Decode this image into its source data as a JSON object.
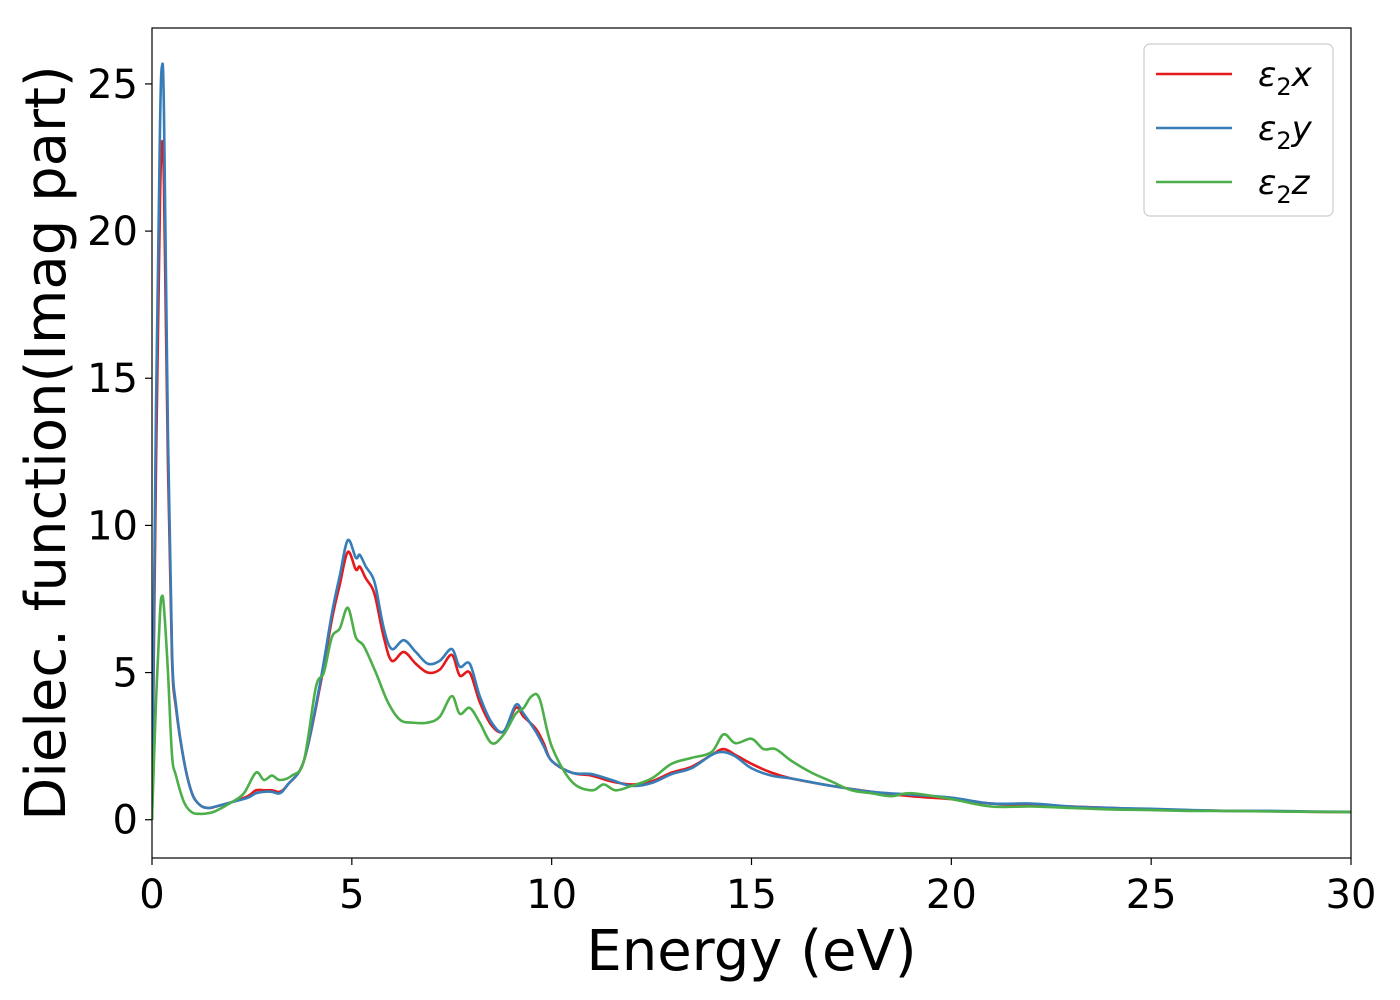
{
  "chart_data": {
    "type": "line",
    "xlabel": "Energy (eV)",
    "ylabel": "Dielec. function(Imag part)",
    "xlim": [
      0,
      30
    ],
    "ylim": [
      -1.3,
      26.9
    ],
    "xticks": [
      0,
      5,
      10,
      15,
      20,
      25,
      30
    ],
    "yticks": [
      0,
      5,
      10,
      15,
      20,
      25
    ],
    "legend_position": "top-right",
    "grid": false,
    "series": [
      {
        "name": "ε₂x",
        "legend_base": "ε",
        "legend_sub": "2",
        "legend_var": "x",
        "color": "#e41a1c",
        "x": [
          0,
          0.1,
          0.2,
          0.25,
          0.3,
          0.4,
          0.5,
          0.6,
          0.8,
          1.0,
          1.2,
          1.4,
          1.6,
          2.0,
          2.4,
          2.6,
          2.8,
          3.0,
          3.2,
          3.4,
          3.8,
          4.2,
          4.5,
          4.7,
          4.9,
          5.1,
          5.2,
          5.35,
          5.5,
          5.6,
          5.8,
          6.0,
          6.3,
          6.6,
          6.9,
          7.2,
          7.5,
          7.7,
          7.95,
          8.2,
          8.5,
          8.8,
          9.1,
          9.3,
          9.6,
          9.8,
          10.0,
          10.5,
          11.0,
          11.5,
          12.0,
          12.5,
          13.0,
          13.5,
          14.0,
          14.3,
          14.6,
          15.0,
          15.5,
          16.0,
          17.0,
          18.0,
          19.0,
          20.0,
          21.0,
          22.0,
          23.0,
          24.0,
          25.0,
          26.0,
          27.0,
          28.0,
          29.0,
          30.0
        ],
        "values": [
          0.0,
          12.0,
          21.0,
          23.0,
          21.5,
          12.0,
          5.5,
          3.8,
          2.0,
          0.9,
          0.5,
          0.4,
          0.45,
          0.6,
          0.8,
          1.0,
          1.0,
          1.0,
          0.95,
          1.2,
          2.0,
          4.5,
          6.8,
          8.0,
          9.1,
          8.5,
          8.6,
          8.2,
          7.9,
          7.5,
          6.2,
          5.4,
          5.7,
          5.3,
          5.0,
          5.1,
          5.6,
          4.9,
          5.0,
          4.0,
          3.2,
          3.0,
          3.8,
          3.5,
          3.1,
          2.6,
          2.0,
          1.6,
          1.5,
          1.3,
          1.2,
          1.3,
          1.6,
          1.8,
          2.2,
          2.4,
          2.2,
          1.9,
          1.6,
          1.4,
          1.15,
          0.95,
          0.8,
          0.7,
          0.55,
          0.5,
          0.45,
          0.4,
          0.35,
          0.32,
          0.3,
          0.29,
          0.27,
          0.26
        ]
      },
      {
        "name": "ε₂y",
        "legend_base": "ε",
        "legend_sub": "2",
        "legend_var": "y",
        "color": "#377eb8",
        "x": [
          0,
          0.1,
          0.2,
          0.25,
          0.3,
          0.4,
          0.5,
          0.6,
          0.8,
          1.0,
          1.2,
          1.4,
          1.6,
          2.0,
          2.4,
          2.6,
          2.8,
          3.0,
          3.2,
          3.4,
          3.8,
          4.2,
          4.5,
          4.7,
          4.9,
          5.1,
          5.2,
          5.35,
          5.5,
          5.6,
          5.8,
          6.0,
          6.3,
          6.6,
          6.9,
          7.2,
          7.5,
          7.7,
          7.95,
          8.2,
          8.5,
          8.8,
          9.1,
          9.3,
          9.6,
          9.8,
          10.0,
          10.5,
          11.0,
          11.5,
          12.0,
          12.5,
          13.0,
          13.5,
          14.0,
          14.3,
          14.6,
          15.0,
          15.5,
          16.0,
          17.0,
          18.0,
          19.0,
          20.0,
          21.0,
          22.0,
          23.0,
          24.0,
          25.0,
          26.0,
          27.0,
          28.0,
          29.0,
          30.0
        ],
        "values": [
          0.0,
          14.0,
          23.5,
          25.6,
          24.0,
          13.0,
          5.8,
          3.9,
          2.0,
          0.9,
          0.5,
          0.4,
          0.45,
          0.6,
          0.75,
          0.9,
          0.95,
          0.95,
          0.9,
          1.2,
          2.0,
          4.6,
          7.0,
          8.3,
          9.5,
          8.9,
          9.0,
          8.6,
          8.3,
          7.9,
          6.5,
          5.8,
          6.1,
          5.7,
          5.3,
          5.4,
          5.8,
          5.2,
          5.3,
          4.2,
          3.3,
          3.0,
          3.9,
          3.6,
          3.0,
          2.5,
          2.0,
          1.6,
          1.55,
          1.35,
          1.15,
          1.25,
          1.55,
          1.75,
          2.2,
          2.3,
          2.15,
          1.75,
          1.5,
          1.4,
          1.15,
          0.95,
          0.85,
          0.75,
          0.55,
          0.55,
          0.45,
          0.4,
          0.37,
          0.33,
          0.3,
          0.3,
          0.28,
          0.27
        ]
      },
      {
        "name": "ε₂z",
        "legend_base": "ε",
        "legend_sub": "2",
        "legend_var": "z",
        "color": "#4daf4a",
        "x": [
          0,
          0.1,
          0.2,
          0.25,
          0.3,
          0.4,
          0.5,
          0.6,
          0.8,
          1.0,
          1.2,
          1.4,
          1.6,
          2.0,
          2.3,
          2.6,
          2.8,
          3.0,
          3.2,
          3.5,
          3.8,
          4.1,
          4.3,
          4.5,
          4.7,
          4.9,
          5.1,
          5.3,
          5.6,
          5.9,
          6.2,
          6.5,
          6.9,
          7.2,
          7.5,
          7.7,
          7.95,
          8.2,
          8.5,
          8.8,
          9.1,
          9.3,
          9.5,
          9.7,
          10.0,
          10.5,
          11.0,
          11.3,
          11.6,
          12.0,
          12.5,
          13.0,
          13.5,
          14.0,
          14.3,
          14.6,
          15.0,
          15.3,
          15.6,
          16.0,
          16.5,
          17.0,
          17.5,
          18.0,
          18.5,
          19.0,
          20.0,
          21.0,
          22.0,
          23.0,
          24.0,
          25.0,
          26.0,
          27.0,
          28.0,
          29.0,
          30.0
        ],
        "values": [
          0.0,
          4.0,
          7.0,
          7.6,
          7.2,
          5.0,
          2.2,
          1.5,
          0.6,
          0.25,
          0.2,
          0.22,
          0.3,
          0.6,
          0.9,
          1.6,
          1.35,
          1.5,
          1.35,
          1.5,
          2.0,
          4.5,
          5.0,
          6.2,
          6.5,
          7.2,
          6.2,
          5.9,
          5.0,
          4.0,
          3.4,
          3.3,
          3.3,
          3.5,
          4.2,
          3.6,
          3.8,
          3.3,
          2.6,
          2.9,
          3.6,
          3.8,
          4.2,
          4.1,
          2.5,
          1.3,
          1.0,
          1.2,
          1.0,
          1.15,
          1.4,
          1.9,
          2.1,
          2.3,
          2.9,
          2.6,
          2.75,
          2.4,
          2.4,
          2.0,
          1.6,
          1.3,
          1.0,
          0.9,
          0.8,
          0.9,
          0.7,
          0.45,
          0.45,
          0.4,
          0.35,
          0.33,
          0.3,
          0.3,
          0.28,
          0.27,
          0.26
        ]
      }
    ]
  }
}
